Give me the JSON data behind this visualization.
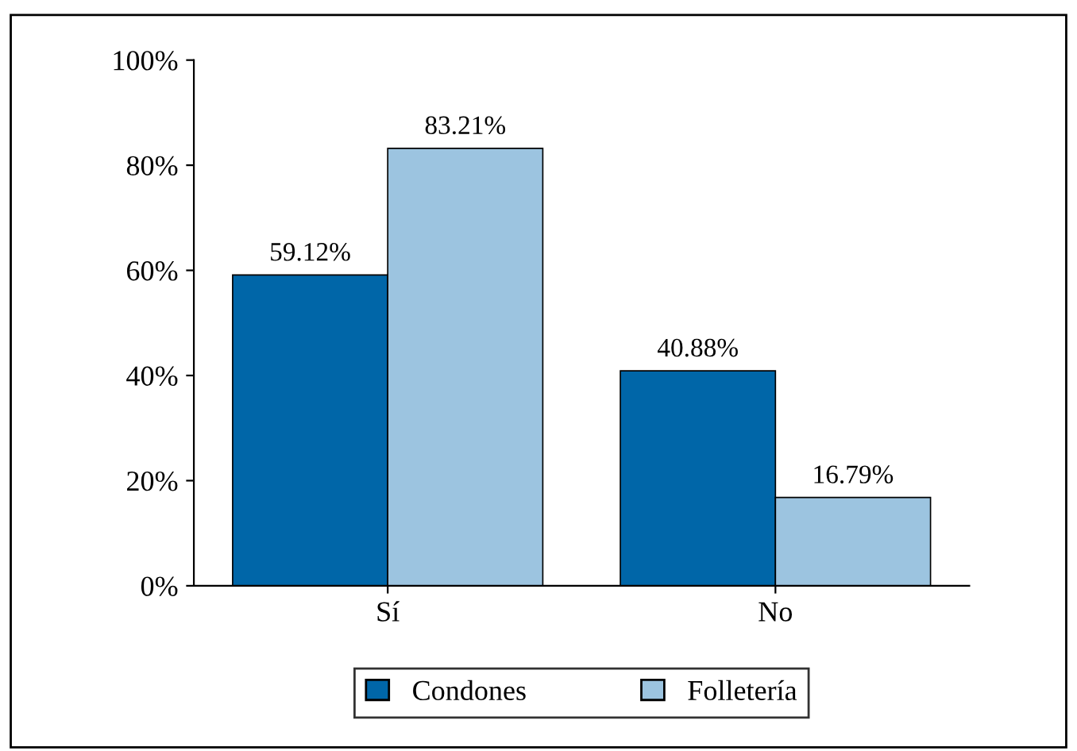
{
  "chart_data": {
    "type": "bar",
    "categories": [
      "Sí",
      "No"
    ],
    "series": [
      {
        "name": "Condones",
        "color": "#0066a8",
        "values": [
          59.12,
          40.88
        ],
        "value_labels": [
          "59.12%",
          "40.88%"
        ]
      },
      {
        "name": "Folletería",
        "color": "#9cc4e0",
        "values": [
          83.21,
          16.79
        ],
        "value_labels": [
          "83.21%",
          "16.79%"
        ]
      }
    ],
    "ylim": [
      0,
      100
    ],
    "yticks": [
      {
        "value": 0,
        "label": "0%"
      },
      {
        "value": 20,
        "label": "20%"
      },
      {
        "value": 40,
        "label": "40%"
      },
      {
        "value": 60,
        "label": "60%"
      },
      {
        "value": 80,
        "label": "80%"
      },
      {
        "value": 100,
        "label": "100%"
      }
    ],
    "grid": false,
    "legend": "bottom"
  }
}
